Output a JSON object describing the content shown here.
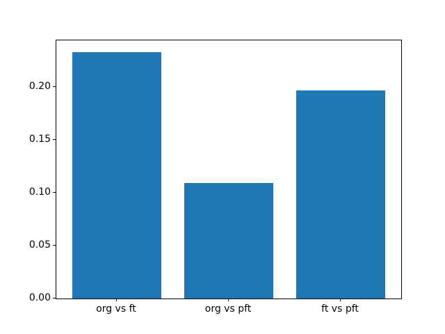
{
  "chart_data": {
    "type": "bar",
    "categories": [
      "org vs ft",
      "org vs pft",
      "ft vs pft"
    ],
    "values": [
      0.233,
      0.109,
      0.197
    ],
    "title": "",
    "xlabel": "",
    "ylabel": "",
    "ylim": [
      0,
      0.2443
    ],
    "ytick_labels": [
      "0.00",
      "0.05",
      "0.10",
      "0.15",
      "0.20"
    ],
    "bar_color": "#1f77b4",
    "frame_color": "#000000",
    "background_color": "#ffffff",
    "grid": false,
    "legend": "none"
  }
}
